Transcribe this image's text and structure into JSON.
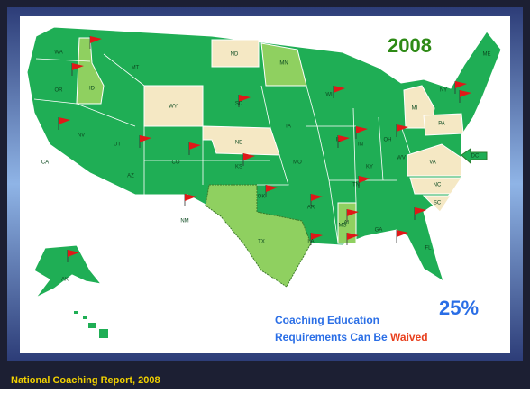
{
  "slide": {
    "year": "2008",
    "percent": "25%",
    "caption_line1": "Coaching Education",
    "caption_line2": "Requirements Can Be",
    "caption_highlight": "Waived",
    "footer": "National Coaching Report, 2008"
  },
  "state_labels": [
    "WA",
    "OR",
    "CA",
    "NV",
    "ID",
    "MT",
    "WY",
    "UT",
    "CO",
    "AZ",
    "NM",
    "ND",
    "SD",
    "NE",
    "KS",
    "OK",
    "TX",
    "MN",
    "IA",
    "MO",
    "AR",
    "LA",
    "WI",
    "IL",
    "MS",
    "AL",
    "TN",
    "KY",
    "IN",
    "OH",
    "MI",
    "GA",
    "FL",
    "SC",
    "NC",
    "VA",
    "WV",
    "PA",
    "NY",
    "ME",
    "AK",
    "DC"
  ]
}
